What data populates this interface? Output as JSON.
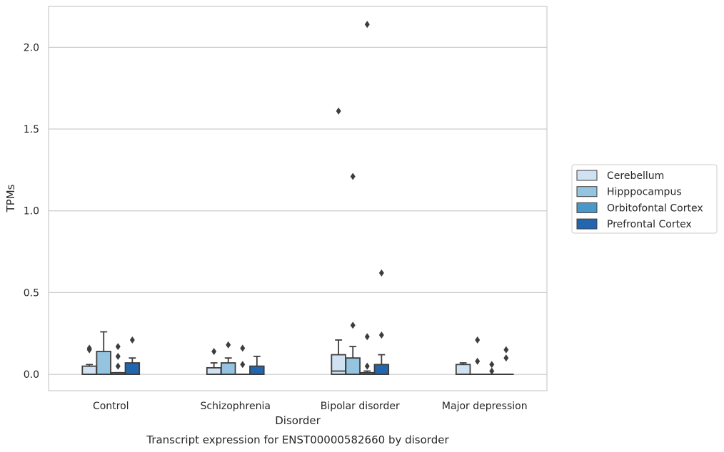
{
  "chart_data": {
    "type": "boxplot",
    "title": "",
    "caption": "Transcript expression for ENST00000582660 by disorder",
    "xlabel": "Disorder",
    "ylabel": "TPMs",
    "ylim": [
      -0.1,
      2.25
    ],
    "yticks": [
      0.0,
      0.5,
      1.0,
      1.5,
      2.0
    ],
    "ytick_labels": [
      "0.0",
      "0.5",
      "1.0",
      "1.5",
      "2.0"
    ],
    "grid": "horizontal",
    "legend_position": "right",
    "categories": [
      "Control",
      "Schizophrenia",
      "Bipolar disorder",
      "Major depression"
    ],
    "series": [
      {
        "name": "Cerebellum",
        "color": "#d0e1f2",
        "boxes": [
          {
            "whislo": 0.0,
            "q1": 0.0,
            "med": 0.0,
            "q3": 0.05,
            "whishi": 0.06,
            "fliers": [
              0.15,
              0.16
            ]
          },
          {
            "whislo": 0.0,
            "q1": 0.0,
            "med": 0.0,
            "q3": 0.04,
            "whishi": 0.07,
            "fliers": [
              0.14
            ]
          },
          {
            "whislo": 0.0,
            "q1": 0.0,
            "med": 0.02,
            "q3": 0.12,
            "whishi": 0.21,
            "fliers": [
              1.61
            ]
          },
          {
            "whislo": 0.0,
            "q1": 0.0,
            "med": 0.0,
            "q3": 0.06,
            "whishi": 0.07,
            "fliers": []
          }
        ]
      },
      {
        "name": "Hipppocampus",
        "color": "#94c4df",
        "boxes": [
          {
            "whislo": 0.0,
            "q1": 0.0,
            "med": 0.0,
            "q3": 0.14,
            "whishi": 0.26,
            "fliers": []
          },
          {
            "whislo": 0.0,
            "q1": 0.0,
            "med": 0.0,
            "q3": 0.07,
            "whishi": 0.1,
            "fliers": [
              0.18
            ]
          },
          {
            "whislo": 0.0,
            "q1": 0.0,
            "med": 0.0,
            "q3": 0.1,
            "whishi": 0.17,
            "fliers": [
              0.3,
              1.21
            ]
          },
          {
            "whislo": 0.0,
            "q1": 0.0,
            "med": 0.0,
            "q3": 0.0,
            "whishi": 0.0,
            "fliers": [
              0.08,
              0.21
            ]
          }
        ]
      },
      {
        "name": "Orbitofontal Cortex",
        "color": "#4a98c9",
        "boxes": [
          {
            "whislo": 0.0,
            "q1": 0.0,
            "med": 0.0,
            "q3": 0.01,
            "whishi": 0.01,
            "fliers": [
              0.05,
              0.11,
              0.17
            ]
          },
          {
            "whislo": 0.0,
            "q1": 0.0,
            "med": 0.0,
            "q3": 0.0,
            "whishi": 0.0,
            "fliers": [
              0.06,
              0.16
            ]
          },
          {
            "whislo": 0.0,
            "q1": 0.0,
            "med": 0.0,
            "q3": 0.01,
            "whishi": 0.02,
            "fliers": [
              0.05,
              0.23,
              2.14
            ]
          },
          {
            "whislo": 0.0,
            "q1": 0.0,
            "med": 0.0,
            "q3": 0.0,
            "whishi": 0.0,
            "fliers": [
              0.02,
              0.06
            ]
          }
        ]
      },
      {
        "name": "Prefrontal Cortex",
        "color": "#2366ad",
        "boxes": [
          {
            "whislo": 0.0,
            "q1": 0.0,
            "med": 0.0,
            "q3": 0.07,
            "whishi": 0.1,
            "fliers": [
              0.21
            ]
          },
          {
            "whislo": 0.0,
            "q1": 0.0,
            "med": 0.0,
            "q3": 0.05,
            "whishi": 0.11,
            "fliers": []
          },
          {
            "whislo": 0.0,
            "q1": 0.0,
            "med": 0.0,
            "q3": 0.06,
            "whishi": 0.12,
            "fliers": [
              0.24,
              0.62
            ]
          },
          {
            "whislo": 0.0,
            "q1": 0.0,
            "med": 0.0,
            "q3": 0.0,
            "whishi": 0.0,
            "fliers": [
              0.1,
              0.15
            ]
          }
        ]
      }
    ]
  }
}
